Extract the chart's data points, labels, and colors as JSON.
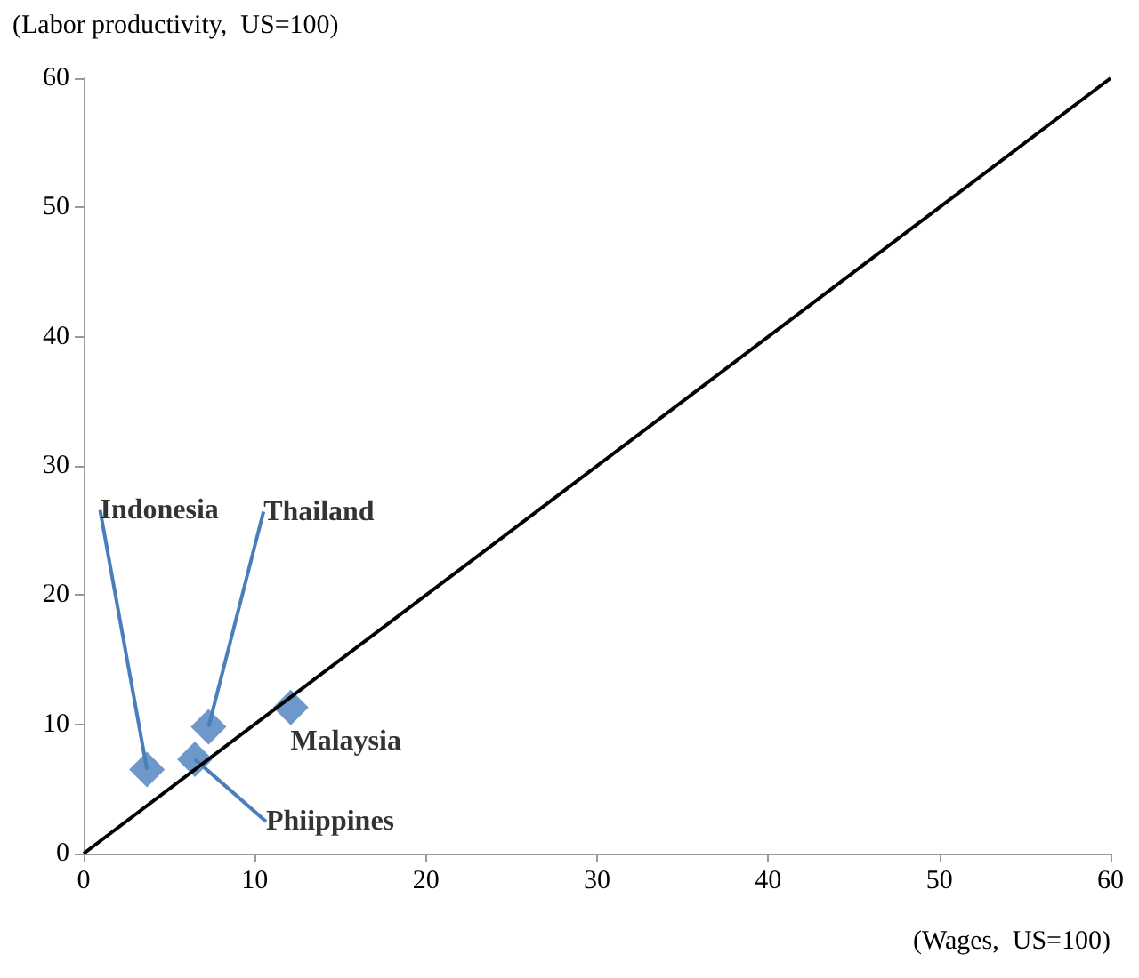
{
  "chart_data": {
    "type": "scatter",
    "xlabel": "(Wages,  US=100)",
    "ylabel": "(Labor productivity,  US=100)",
    "xlim": [
      0,
      60
    ],
    "xticks": [
      0,
      10,
      20,
      30,
      40,
      50,
      60
    ],
    "ylim": [
      0,
      60
    ],
    "yticks": [
      0,
      10,
      20,
      30,
      40,
      50,
      60
    ],
    "grid": false,
    "marker": "diamond",
    "series": [
      {
        "color": "#4a7ebb",
        "x": [
          3.7,
          7.3,
          6.5,
          12.1
        ],
        "values": [
          6.5,
          9.8,
          7.3,
          11.3
        ]
      },
      {
        "type": "line",
        "color": "#000000",
        "marker": "none",
        "x": [
          0,
          60
        ],
        "values": [
          0,
          60
        ]
      }
    ],
    "annotations": [
      {
        "text": "Indonesia",
        "x": 3.7,
        "y": 6.5
      },
      {
        "text": "Thailand",
        "x": 7.3,
        "y": 9.8
      },
      {
        "text": "Phiippines",
        "x": 6.5,
        "y": 7.3
      },
      {
        "text": "Malaysia",
        "x": 12.1,
        "y": 11.3
      }
    ]
  }
}
